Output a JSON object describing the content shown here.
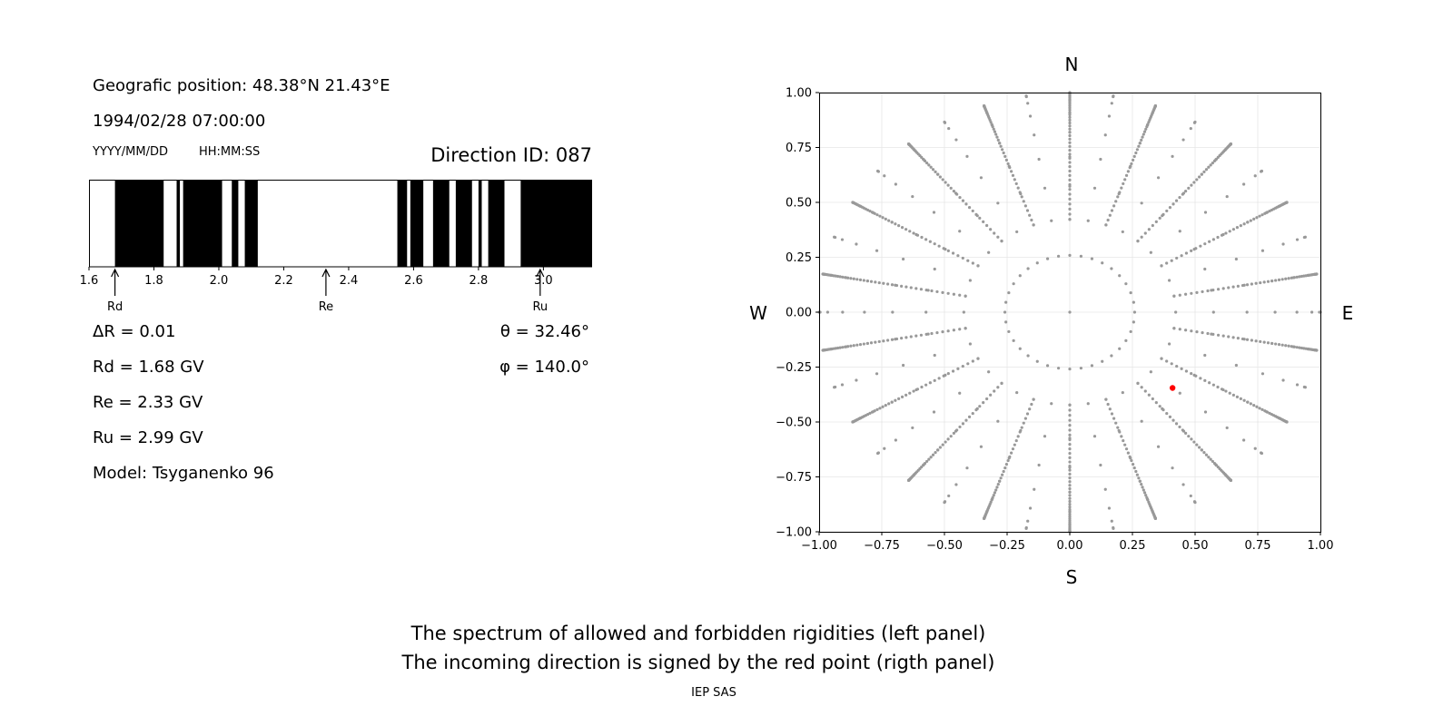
{
  "left_panel": {
    "position_line": "Geografic position: 48.38°N 21.43°E",
    "datetime": "1994/02/28 07:00:00",
    "date_format": "YYYY/MM/DD",
    "time_format": "HH:MM:SS",
    "direction_id": "Direction ID: 087",
    "delta_r": "ΔR = 0.01",
    "rd": "Rd = 1.68 GV",
    "re": "Re = 2.33 GV",
    "ru": "Ru = 2.99 GV",
    "model": "Model: Tsyganenko 96",
    "theta": "θ = 32.46°",
    "phi": "φ = 140.0°",
    "markers": [
      {
        "label": "Rd",
        "value": 1.68
      },
      {
        "label": "Re",
        "value": 2.33
      },
      {
        "label": "Ru",
        "value": 2.99
      }
    ]
  },
  "chart_data": [
    {
      "type": "bar",
      "description_role": "rigidity spectrum (black = forbidden, white = allowed)",
      "xlim": [
        1.6,
        3.15
      ],
      "xticks": [
        "1.6",
        "1.8",
        "2.0",
        "2.2",
        "2.4",
        "2.6",
        "2.8",
        "3.0"
      ],
      "forbidden_intervals": [
        [
          1.68,
          1.83
        ],
        [
          1.87,
          1.88
        ],
        [
          1.89,
          2.01
        ],
        [
          2.04,
          2.06
        ],
        [
          2.08,
          2.12
        ],
        [
          2.55,
          2.58
        ],
        [
          2.59,
          2.63
        ],
        [
          2.66,
          2.71
        ],
        [
          2.73,
          2.78
        ],
        [
          2.8,
          2.81
        ],
        [
          2.83,
          2.88
        ],
        [
          2.93,
          3.15
        ]
      ]
    },
    {
      "type": "scatter",
      "xlim": [
        -1.0,
        1.0
      ],
      "ylim": [
        -1.0,
        1.0
      ],
      "xticks": [
        "−1.00",
        "−0.75",
        "−0.50",
        "−0.25",
        "0.00",
        "0.25",
        "0.50",
        "0.75",
        "1.00"
      ],
      "yticks": [
        "1.00",
        "0.75",
        "0.50",
        "0.25",
        "0.00",
        "−0.25",
        "−0.50",
        "−0.75",
        "−1.00"
      ],
      "grid": true,
      "directions": {
        "north": "N",
        "south": "S",
        "west": "W",
        "east": "E"
      },
      "grid_points": {
        "rings_zenith_deg": [
          15,
          25,
          35,
          45,
          55,
          65,
          75,
          85,
          90
        ],
        "azimuth_step_deg": 10,
        "spoke_step_deg": 20,
        "spoke_zenith_range_deg": [
          25,
          90
        ],
        "color": "#999999"
      },
      "highlight_point": {
        "x": 0.41,
        "y": -0.345,
        "color": "#ff0000"
      }
    }
  ],
  "caption": {
    "line1": "The spectrum of allowed and forbidden rigidities (left panel)",
    "line2": "The incoming direction is signed by the red point (rigth panel)",
    "credit": "IEP SAS"
  }
}
